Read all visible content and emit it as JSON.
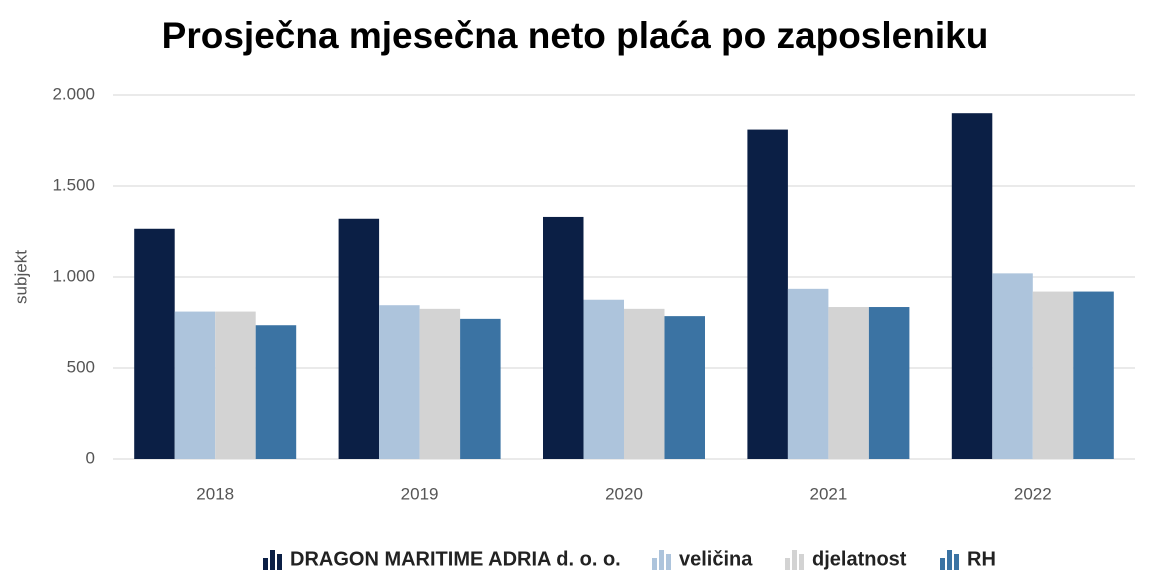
{
  "chart_data": {
    "type": "bar",
    "title": "Prosječna mjesečna neto plaća po zaposleniku",
    "y_label": "subjekt",
    "categories": [
      "2018",
      "2019",
      "2020",
      "2021",
      "2022"
    ],
    "series": [
      {
        "name": "DRAGON MARITIME ADRIA d. o. o.",
        "color": "#0b1f45",
        "values": [
          1265,
          1320,
          1330,
          1810,
          1900
        ]
      },
      {
        "name": "veličina",
        "color": "#adc4dc",
        "values": [
          810,
          845,
          875,
          935,
          1020
        ]
      },
      {
        "name": "djelatnost",
        "color": "#d3d3d3",
        "values": [
          810,
          825,
          825,
          835,
          920
        ]
      },
      {
        "name": "RH",
        "color": "#3b73a3",
        "values": [
          735,
          770,
          785,
          835,
          920
        ]
      }
    ],
    "ylim": [
      0,
      2000
    ],
    "yticks": [
      0,
      500,
      {
        "value": 1000,
        "label": "1.000"
      },
      {
        "value": 1500,
        "label": "1.500"
      },
      {
        "value": 2000,
        "label": "2.000"
      }
    ],
    "grid": true,
    "legend": "bottom"
  }
}
